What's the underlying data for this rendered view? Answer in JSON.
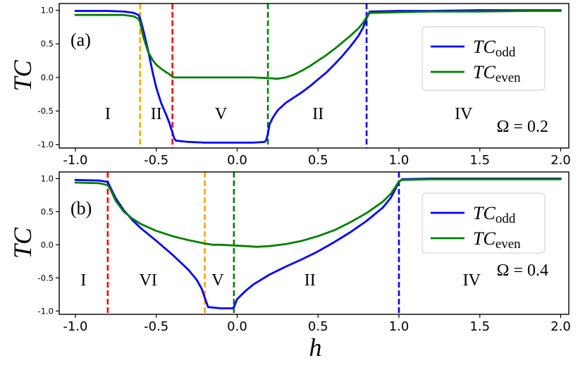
{
  "chart_data": [
    {
      "type": "line",
      "panel_label": "(a)",
      "annotation": "Ω = 0.2",
      "xlabel": "",
      "ylabel": "TC",
      "xlim": [
        -1.1,
        2.05
      ],
      "ylim": [
        -1.05,
        1.1
      ],
      "xticks": [
        "-1.0",
        "-0.5",
        "0.0",
        "0.5",
        "1.0",
        "1.5",
        "2.0"
      ],
      "yticks": [
        "1.0",
        "0.5",
        "0.0",
        "-0.5",
        "-1.0"
      ],
      "vlines": [
        {
          "x": -0.6,
          "color": "#ffa500"
        },
        {
          "x": -0.4,
          "color": "#ff0000"
        },
        {
          "x": 0.19,
          "color": "#008000"
        },
        {
          "x": 0.8,
          "color": "#0000ff"
        }
      ],
      "regions": [
        {
          "label": "I",
          "x": -0.8
        },
        {
          "label": "II",
          "x": -0.5
        },
        {
          "label": "V",
          "x": -0.1
        },
        {
          "label": "II",
          "x": 0.5
        },
        {
          "label": "IV",
          "x": 1.4
        }
      ],
      "legend": {
        "position": "upper right",
        "entries": [
          {
            "base": "TC",
            "sub": "odd",
            "color": "#0000ff"
          },
          {
            "base": "TC",
            "sub": "even",
            "color": "#008000"
          }
        ]
      },
      "series": [
        {
          "name": "TCodd",
          "color": "#0000ff",
          "x": [
            -1.0,
            -0.8,
            -0.7,
            -0.64,
            -0.61,
            -0.6,
            -0.58,
            -0.55,
            -0.52,
            -0.5,
            -0.47,
            -0.44,
            -0.42,
            -0.41,
            -0.4,
            -0.39,
            -0.38,
            -0.3,
            -0.2,
            -0.1,
            0.0,
            0.1,
            0.17,
            0.18,
            0.19,
            0.2,
            0.22,
            0.25,
            0.3,
            0.35,
            0.4,
            0.45,
            0.5,
            0.55,
            0.6,
            0.65,
            0.7,
            0.75,
            0.78,
            0.8,
            0.82,
            1.0,
            1.2,
            1.5,
            1.8,
            2.0
          ],
          "y": [
            0.99,
            0.99,
            0.98,
            0.96,
            0.93,
            0.88,
            0.7,
            0.4,
            0.05,
            -0.15,
            -0.38,
            -0.55,
            -0.67,
            -0.75,
            -0.82,
            -0.9,
            -0.94,
            -0.96,
            -0.97,
            -0.97,
            -0.97,
            -0.97,
            -0.96,
            -0.93,
            -0.84,
            -0.7,
            -0.6,
            -0.49,
            -0.38,
            -0.3,
            -0.22,
            -0.13,
            -0.03,
            0.07,
            0.19,
            0.32,
            0.46,
            0.62,
            0.75,
            0.88,
            0.98,
            0.99,
            0.99,
            1.0,
            1.0,
            1.0
          ]
        },
        {
          "name": "TCeven",
          "color": "#008000",
          "x": [
            -1.0,
            -0.8,
            -0.7,
            -0.64,
            -0.61,
            -0.6,
            -0.58,
            -0.55,
            -0.52,
            -0.5,
            -0.47,
            -0.44,
            -0.42,
            -0.41,
            -0.4,
            -0.39,
            -0.3,
            -0.2,
            -0.1,
            0.0,
            0.1,
            0.19,
            0.25,
            0.3,
            0.35,
            0.4,
            0.45,
            0.5,
            0.55,
            0.6,
            0.65,
            0.7,
            0.75,
            0.78,
            0.8,
            0.82,
            1.0,
            1.2,
            1.5,
            1.8,
            2.0
          ],
          "y": [
            0.93,
            0.93,
            0.93,
            0.91,
            0.87,
            0.82,
            0.6,
            0.38,
            0.25,
            0.19,
            0.13,
            0.08,
            0.05,
            0.03,
            0.01,
            0.0,
            0.0,
            0.0,
            0.0,
            0.0,
            0.0,
            -0.01,
            -0.02,
            0.0,
            0.04,
            0.1,
            0.17,
            0.25,
            0.33,
            0.42,
            0.52,
            0.62,
            0.73,
            0.82,
            0.9,
            0.96,
            0.97,
            0.98,
            0.98,
            0.99,
            0.99
          ]
        }
      ]
    },
    {
      "type": "line",
      "panel_label": "(b)",
      "annotation": "Ω = 0.4",
      "xlabel": "h",
      "ylabel": "TC",
      "xlim": [
        -1.1,
        2.05
      ],
      "ylim": [
        -1.05,
        1.1
      ],
      "xticks": [
        "-1.0",
        "-0.5",
        "0.0",
        "0.5",
        "1.0",
        "1.5",
        "2.0"
      ],
      "yticks": [
        "1.0",
        "0.5",
        "0.0",
        "-0.5",
        "-1.0"
      ],
      "vlines": [
        {
          "x": -0.8,
          "color": "#ff0000"
        },
        {
          "x": -0.2,
          "color": "#ffa500"
        },
        {
          "x": -0.02,
          "color": "#008000"
        },
        {
          "x": 1.0,
          "color": "#0000ff"
        }
      ],
      "regions": [
        {
          "label": "I",
          "x": -0.95
        },
        {
          "label": "VI",
          "x": -0.55
        },
        {
          "label": "V",
          "x": -0.12
        },
        {
          "label": "II",
          "x": 0.45
        },
        {
          "label": "IV",
          "x": 1.45
        }
      ],
      "legend": {
        "position": "upper right",
        "entries": [
          {
            "base": "TC",
            "sub": "odd",
            "color": "#0000ff"
          },
          {
            "base": "TC",
            "sub": "even",
            "color": "#008000"
          }
        ]
      },
      "series": [
        {
          "name": "TCodd",
          "color": "#0000ff",
          "x": [
            -1.0,
            -0.85,
            -0.8,
            -0.78,
            -0.75,
            -0.7,
            -0.65,
            -0.6,
            -0.5,
            -0.4,
            -0.3,
            -0.25,
            -0.22,
            -0.2,
            -0.18,
            -0.1,
            -0.03,
            -0.02,
            -0.01,
            0.0,
            0.05,
            0.1,
            0.2,
            0.3,
            0.4,
            0.5,
            0.6,
            0.7,
            0.8,
            0.9,
            0.95,
            0.98,
            1.0,
            1.02,
            1.2,
            1.5,
            1.8,
            2.0
          ],
          "y": [
            0.98,
            0.97,
            0.95,
            0.85,
            0.7,
            0.52,
            0.38,
            0.26,
            0.06,
            -0.15,
            -0.38,
            -0.53,
            -0.66,
            -0.8,
            -0.94,
            -0.96,
            -0.96,
            -0.94,
            -0.88,
            -0.82,
            -0.7,
            -0.6,
            -0.45,
            -0.33,
            -0.22,
            -0.1,
            0.04,
            0.19,
            0.36,
            0.56,
            0.71,
            0.85,
            0.95,
            0.99,
            1.0,
            1.0,
            1.0,
            1.0
          ]
        },
        {
          "name": "TCeven",
          "color": "#008000",
          "x": [
            -1.0,
            -0.85,
            -0.8,
            -0.78,
            -0.75,
            -0.7,
            -0.65,
            -0.6,
            -0.5,
            -0.4,
            -0.3,
            -0.2,
            -0.15,
            -0.1,
            -0.02,
            0.05,
            0.12,
            0.2,
            0.3,
            0.4,
            0.5,
            0.6,
            0.7,
            0.8,
            0.9,
            0.95,
            0.98,
            1.0,
            1.02,
            1.2,
            1.5,
            1.8,
            2.0
          ],
          "y": [
            0.94,
            0.93,
            0.9,
            0.82,
            0.66,
            0.5,
            0.4,
            0.32,
            0.21,
            0.13,
            0.07,
            0.02,
            0.0,
            0.0,
            -0.01,
            -0.02,
            -0.03,
            -0.02,
            0.01,
            0.06,
            0.13,
            0.22,
            0.34,
            0.48,
            0.65,
            0.77,
            0.88,
            0.96,
            0.98,
            0.99,
            0.99,
            0.99,
            0.99
          ]
        }
      ]
    }
  ]
}
